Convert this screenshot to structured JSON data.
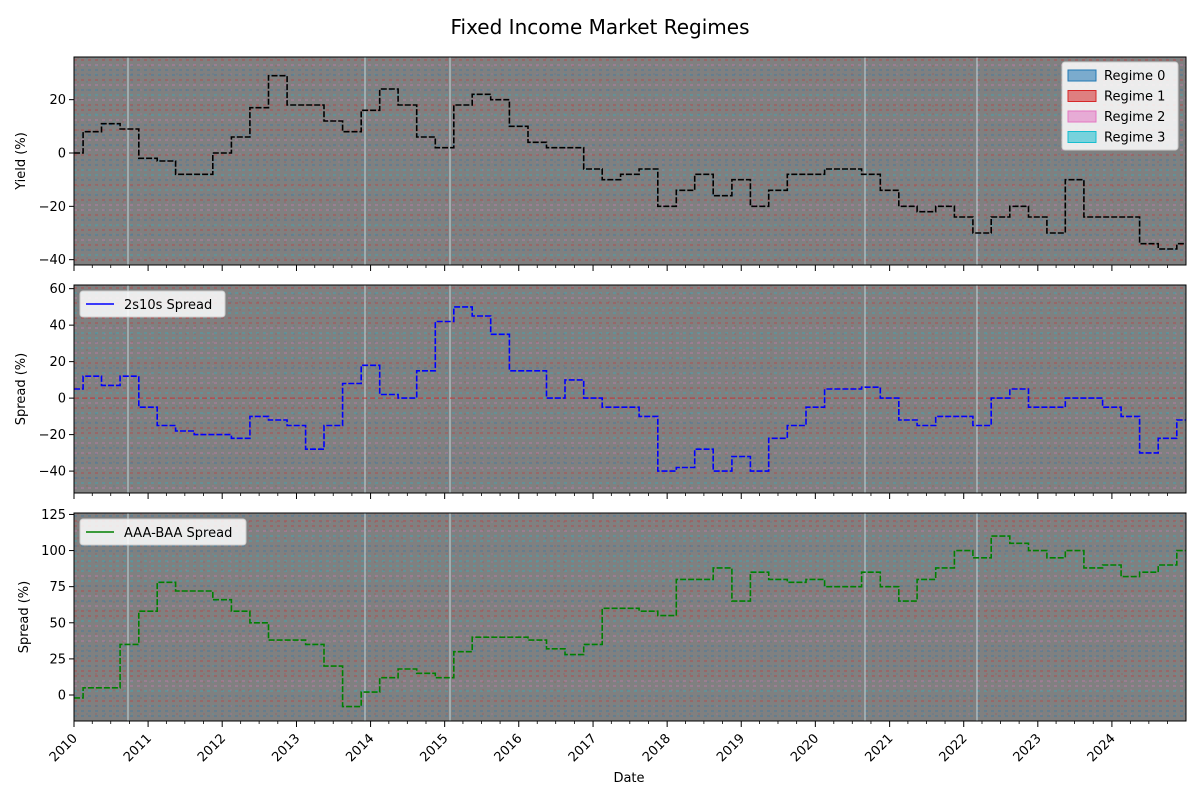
{
  "figure": {
    "title": "Fixed Income Market Regimes"
  },
  "chart_data": [
    {
      "type": "line",
      "ylabel": "Yield (%)",
      "xlim": [
        "2010-01-01",
        "2024-12-31"
      ],
      "ylim": [
        -42,
        36
      ],
      "yticks": [
        -40,
        -20,
        0,
        20
      ],
      "legend": "top-right",
      "legend_entries": [
        {
          "name": "Regime 0",
          "color": "#1f77b4"
        },
        {
          "name": "Regime 1",
          "color": "#d62728"
        },
        {
          "name": "Regime 2",
          "color": "#e377c2"
        },
        {
          "name": "Regime 3",
          "color": "#17becf"
        }
      ],
      "series": [
        {
          "color": "#000000",
          "x": [
            "2010-01-01",
            "2010-04-01",
            "2010-07-01",
            "2010-10-01",
            "2011-01-01",
            "2011-04-01",
            "2011-07-01",
            "2011-10-01",
            "2012-01-01",
            "2012-04-01",
            "2012-07-01",
            "2012-10-01",
            "2013-01-01",
            "2013-04-01",
            "2013-07-01",
            "2013-10-01",
            "2014-01-01",
            "2014-04-01",
            "2014-07-01",
            "2014-10-01",
            "2015-01-01",
            "2015-04-01",
            "2015-07-01",
            "2015-10-01",
            "2016-01-01",
            "2016-04-01",
            "2016-07-01",
            "2016-10-01",
            "2017-01-01",
            "2017-04-01",
            "2017-07-01",
            "2017-10-01",
            "2018-01-01",
            "2018-04-01",
            "2018-07-01",
            "2018-10-01",
            "2019-01-01",
            "2019-04-01",
            "2019-07-01",
            "2019-10-01",
            "2020-01-01",
            "2020-04-01",
            "2020-07-01",
            "2020-10-01",
            "2021-01-01",
            "2021-04-01",
            "2021-07-01",
            "2021-10-01",
            "2022-01-01",
            "2022-04-01",
            "2022-07-01",
            "2022-10-01",
            "2023-01-01",
            "2023-04-01",
            "2023-07-01",
            "2023-10-01",
            "2024-01-01",
            "2024-04-01",
            "2024-07-01",
            "2024-10-01",
            "2024-12-31"
          ],
          "y": [
            0,
            8,
            11,
            9,
            -2,
            -3,
            -8,
            -8,
            0,
            6,
            17,
            29,
            18,
            18,
            12,
            8,
            16,
            24,
            18,
            6,
            2,
            18,
            22,
            20,
            10,
            4,
            2,
            2,
            -6,
            -10,
            -8,
            -6,
            -20,
            -14,
            -8,
            -16,
            -10,
            -20,
            -14,
            -8,
            -8,
            -6,
            -6,
            -8,
            -14,
            -20,
            -22,
            -20,
            -24,
            -30,
            -24,
            -20,
            -24,
            -30,
            -10,
            -24,
            -24,
            -24,
            -34,
            -36,
            -34
          ]
        }
      ]
    },
    {
      "type": "line",
      "ylabel": "Spread (%)",
      "xlim": [
        "2010-01-01",
        "2024-12-31"
      ],
      "ylim": [
        -52,
        62
      ],
      "yticks": [
        -40,
        -20,
        0,
        20,
        40,
        60
      ],
      "legend": "top-left",
      "reference_line": {
        "y": 0,
        "color": "#d62728",
        "style": "dashed"
      },
      "series": [
        {
          "name": "2s10s Spread",
          "color": "#0000ff",
          "x": [
            "2010-01-01",
            "2010-04-01",
            "2010-07-01",
            "2010-10-01",
            "2011-01-01",
            "2011-04-01",
            "2011-07-01",
            "2011-10-01",
            "2012-01-01",
            "2012-04-01",
            "2012-07-01",
            "2012-10-01",
            "2013-01-01",
            "2013-04-01",
            "2013-07-01",
            "2013-10-01",
            "2014-01-01",
            "2014-04-01",
            "2014-07-01",
            "2014-10-01",
            "2015-01-01",
            "2015-04-01",
            "2015-07-01",
            "2015-10-01",
            "2016-01-01",
            "2016-04-01",
            "2016-07-01",
            "2016-10-01",
            "2017-01-01",
            "2017-04-01",
            "2017-07-01",
            "2017-10-01",
            "2018-01-01",
            "2018-04-01",
            "2018-07-01",
            "2018-10-01",
            "2019-01-01",
            "2019-04-01",
            "2019-07-01",
            "2019-10-01",
            "2020-01-01",
            "2020-04-01",
            "2020-07-01",
            "2020-10-01",
            "2021-01-01",
            "2021-04-01",
            "2021-07-01",
            "2021-10-01",
            "2022-01-01",
            "2022-04-01",
            "2022-07-01",
            "2022-10-01",
            "2023-01-01",
            "2023-04-01",
            "2023-07-01",
            "2023-10-01",
            "2024-01-01",
            "2024-04-01",
            "2024-07-01",
            "2024-10-01",
            "2024-12-31"
          ],
          "y": [
            5,
            12,
            7,
            12,
            -5,
            -15,
            -18,
            -20,
            -20,
            -22,
            -10,
            -12,
            -15,
            -28,
            -15,
            8,
            18,
            2,
            0,
            15,
            42,
            50,
            45,
            35,
            15,
            15,
            0,
            10,
            0,
            -5,
            -5,
            -10,
            -40,
            -38,
            -28,
            -40,
            -32,
            -40,
            -22,
            -15,
            -5,
            5,
            5,
            6,
            0,
            -12,
            -15,
            -10,
            -10,
            -15,
            0,
            5,
            -5,
            -5,
            0,
            0,
            -5,
            -10,
            -30,
            -22,
            -12
          ]
        }
      ]
    },
    {
      "type": "line",
      "xlabel": "Date",
      "ylabel": "Spread (%)",
      "xlim": [
        "2010-01-01",
        "2024-12-31"
      ],
      "ylim": [
        -18,
        126
      ],
      "yticks": [
        0,
        25,
        50,
        75,
        100,
        125
      ],
      "xticks": [
        "2010",
        "2011",
        "2012",
        "2013",
        "2014",
        "2015",
        "2016",
        "2017",
        "2018",
        "2019",
        "2020",
        "2021",
        "2022",
        "2023",
        "2024"
      ],
      "legend": "top-left",
      "series": [
        {
          "name": "AAA-BAA Spread",
          "color": "#008000",
          "x": [
            "2010-01-01",
            "2010-04-01",
            "2010-07-01",
            "2010-10-01",
            "2011-01-01",
            "2011-04-01",
            "2011-07-01",
            "2011-10-01",
            "2012-01-01",
            "2012-04-01",
            "2012-07-01",
            "2012-10-01",
            "2013-01-01",
            "2013-04-01",
            "2013-07-01",
            "2013-10-01",
            "2014-01-01",
            "2014-04-01",
            "2014-07-01",
            "2014-10-01",
            "2015-01-01",
            "2015-04-01",
            "2015-07-01",
            "2015-10-01",
            "2016-01-01",
            "2016-04-01",
            "2016-07-01",
            "2016-10-01",
            "2017-01-01",
            "2017-04-01",
            "2017-07-01",
            "2017-10-01",
            "2018-01-01",
            "2018-04-01",
            "2018-07-01",
            "2018-10-01",
            "2019-01-01",
            "2019-04-01",
            "2019-07-01",
            "2019-10-01",
            "2020-01-01",
            "2020-04-01",
            "2020-07-01",
            "2020-10-01",
            "2021-01-01",
            "2021-04-01",
            "2021-07-01",
            "2021-10-01",
            "2022-01-01",
            "2022-04-01",
            "2022-07-01",
            "2022-10-01",
            "2023-01-01",
            "2023-04-01",
            "2023-07-01",
            "2023-10-01",
            "2024-01-01",
            "2024-04-01",
            "2024-07-01",
            "2024-10-01",
            "2024-12-31"
          ],
          "y": [
            -2,
            5,
            5,
            35,
            58,
            78,
            72,
            72,
            66,
            58,
            50,
            38,
            38,
            35,
            20,
            -8,
            2,
            12,
            18,
            15,
            12,
            30,
            40,
            40,
            40,
            38,
            32,
            28,
            35,
            60,
            60,
            58,
            55,
            80,
            80,
            88,
            65,
            85,
            80,
            78,
            80,
            75,
            75,
            85,
            75,
            65,
            80,
            88,
            100,
            95,
            110,
            105,
            100,
            95,
            100,
            88,
            90,
            82,
            85,
            90,
            100
          ]
        }
      ]
    }
  ]
}
